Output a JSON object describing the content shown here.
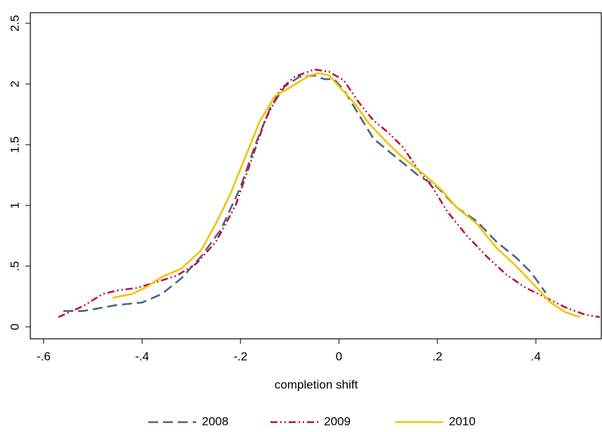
{
  "chart_data": {
    "type": "line",
    "x_label": "completion shift",
    "xlim": [
      -0.627,
      0.533
    ],
    "ylim": [
      -0.099,
      2.587
    ],
    "xticks": [
      {
        "value": -0.6,
        "label": "-.6"
      },
      {
        "value": -0.4,
        "label": "-.4"
      },
      {
        "value": -0.2,
        "label": "-.2"
      },
      0,
      {
        "value": 0.2,
        "label": ".2"
      },
      {
        "value": 0.4,
        "label": ".4"
      }
    ],
    "yticks": [
      0,
      {
        "value": 0.5,
        "label": ".5"
      },
      1,
      1.5,
      2,
      2.5
    ],
    "series": [
      {
        "name": "2008",
        "color": "#4a6680",
        "style": "dashed",
        "x": [
          -0.56,
          -0.52,
          -0.45,
          -0.4,
          -0.36,
          -0.32,
          -0.28,
          -0.24,
          -0.2,
          -0.17,
          -0.14,
          -0.11,
          -0.08,
          -0.05,
          -0.03,
          -0.01,
          0.01,
          0.04,
          0.07,
          0.1,
          0.13,
          0.16,
          0.2,
          0.24,
          0.28,
          0.32,
          0.36,
          0.39,
          0.42
        ],
        "values": [
          0.13,
          0.13,
          0.18,
          0.2,
          0.27,
          0.4,
          0.58,
          0.8,
          1.15,
          1.5,
          1.8,
          1.98,
          2.06,
          2.07,
          2.04,
          2.04,
          1.95,
          1.75,
          1.55,
          1.45,
          1.35,
          1.25,
          1.15,
          0.98,
          0.87,
          0.7,
          0.57,
          0.45,
          0.28
        ]
      },
      {
        "name": "2009",
        "color": "#c0103f",
        "style": "dashdot",
        "x": [
          -0.57,
          -0.52,
          -0.48,
          -0.45,
          -0.41,
          -0.37,
          -0.33,
          -0.29,
          -0.25,
          -0.21,
          -0.18,
          -0.15,
          -0.12,
          -0.09,
          -0.05,
          -0.02,
          0.01,
          0.04,
          0.07,
          0.1,
          0.13,
          0.16,
          0.19,
          0.22,
          0.26,
          0.3,
          0.34,
          0.38,
          0.42,
          0.46,
          0.5,
          0.53
        ],
        "values": [
          0.08,
          0.17,
          0.27,
          0.3,
          0.32,
          0.37,
          0.42,
          0.52,
          0.7,
          1.0,
          1.35,
          1.7,
          1.95,
          2.06,
          2.12,
          2.1,
          2.03,
          1.85,
          1.7,
          1.6,
          1.48,
          1.3,
          1.15,
          0.95,
          0.75,
          0.58,
          0.43,
          0.32,
          0.24,
          0.16,
          0.1,
          0.08
        ]
      },
      {
        "name": "2010",
        "color": "#f2c300",
        "style": "solid",
        "x": [
          -0.46,
          -0.42,
          -0.39,
          -0.36,
          -0.32,
          -0.28,
          -0.25,
          -0.22,
          -0.19,
          -0.16,
          -0.13,
          -0.1,
          -0.08,
          -0.06,
          -0.04,
          -0.02,
          0,
          0.03,
          0.06,
          0.09,
          0.12,
          0.15,
          0.18,
          0.21,
          0.24,
          0.28,
          0.32,
          0.36,
          0.4,
          0.43,
          0.46,
          0.49
        ],
        "values": [
          0.24,
          0.27,
          0.33,
          0.41,
          0.48,
          0.63,
          0.85,
          1.1,
          1.4,
          1.7,
          1.9,
          1.97,
          2.02,
          2.07,
          2.09,
          2.07,
          1.98,
          1.85,
          1.68,
          1.55,
          1.43,
          1.33,
          1.23,
          1.12,
          0.98,
          0.85,
          0.65,
          0.5,
          0.33,
          0.2,
          0.12,
          0.08
        ]
      }
    ]
  }
}
